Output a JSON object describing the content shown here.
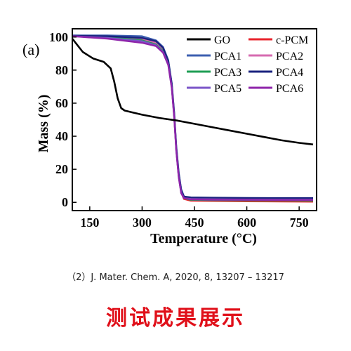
{
  "chart_data": {
    "type": "line",
    "panel_label": "(a)",
    "xlabel": "Temperature (°C)",
    "ylabel": "Mass (%)",
    "xlim": [
      100,
      800
    ],
    "ylim": [
      -5,
      105
    ],
    "xticks": [
      150,
      300,
      450,
      600,
      750
    ],
    "yticks": [
      0,
      20,
      40,
      60,
      80,
      100
    ],
    "grid": false,
    "legend_position": "top-right",
    "series": [
      {
        "name": "GO",
        "color": "#000000",
        "x": [
          100,
          130,
          160,
          190,
          210,
          220,
          230,
          240,
          250,
          270,
          300,
          350,
          400,
          450,
          500,
          550,
          600,
          650,
          700,
          750,
          790
        ],
        "y": [
          99,
          91,
          87,
          85,
          81,
          73,
          63,
          57,
          55.5,
          54.5,
          53,
          51,
          49.5,
          47.5,
          45.5,
          43.5,
          41.5,
          39.5,
          37.5,
          36,
          35
        ]
      },
      {
        "name": "c-PCM",
        "color": "#e8232b",
        "x": [
          100,
          200,
          300,
          340,
          360,
          375,
          385,
          392,
          398,
          405,
          412,
          420,
          440,
          500,
          600,
          700,
          790
        ],
        "y": [
          100.5,
          100,
          98.5,
          96,
          92,
          84,
          70,
          52,
          32,
          16,
          6,
          2,
          1,
          0.8,
          0.6,
          0.5,
          0.4
        ]
      },
      {
        "name": "PCA1",
        "color": "#3d5fb0",
        "x": [
          100,
          200,
          300,
          340,
          360,
          375,
          385,
          392,
          398,
          405,
          412,
          420,
          440,
          500,
          600,
          700,
          790
        ],
        "y": [
          101,
          101,
          100.5,
          98,
          94,
          86,
          72,
          54,
          34,
          18,
          8,
          3.5,
          2.5,
          2.5,
          2.3,
          2.2,
          2.2
        ]
      },
      {
        "name": "PCA2",
        "color": "#d66bb0",
        "x": [
          100,
          200,
          300,
          340,
          360,
          375,
          385,
          392,
          398,
          405,
          412,
          420,
          440,
          500,
          600,
          700,
          790
        ],
        "y": [
          100.5,
          100,
          99,
          96.5,
          92.5,
          85,
          71,
          53,
          33,
          17,
          7,
          3,
          2,
          1.8,
          1.6,
          1.5,
          1.5
        ]
      },
      {
        "name": "PCA3",
        "color": "#1f9e55",
        "x": [
          100,
          200,
          300,
          340,
          360,
          375,
          385,
          392,
          398,
          405,
          412,
          420,
          440,
          500,
          600,
          700,
          790
        ],
        "y": [
          100.5,
          100,
          98,
          95.5,
          91.5,
          84,
          70,
          52,
          32,
          16,
          6,
          2.5,
          1.5,
          1.3,
          1.2,
          1.1,
          1
        ]
      },
      {
        "name": "PCA4",
        "color": "#1a237e",
        "x": [
          100,
          200,
          300,
          340,
          360,
          375,
          385,
          392,
          398,
          405,
          412,
          420,
          440,
          500,
          600,
          700,
          790
        ],
        "y": [
          100.8,
          100.5,
          99.5,
          97.5,
          93.5,
          85.5,
          71.5,
          53.5,
          33.5,
          17.5,
          7.5,
          3.5,
          3,
          2.8,
          2.7,
          2.6,
          2.6
        ]
      },
      {
        "name": "PCA5",
        "color": "#7b55c8",
        "x": [
          100,
          200,
          300,
          340,
          360,
          375,
          385,
          392,
          398,
          405,
          412,
          420,
          440,
          500,
          600,
          700,
          790
        ],
        "y": [
          100.5,
          99.5,
          97.5,
          95,
          91,
          83.5,
          69.5,
          51.5,
          31.5,
          15.5,
          6,
          2.5,
          2,
          1.8,
          1.7,
          1.6,
          1.6
        ]
      },
      {
        "name": "PCA6",
        "color": "#8e24aa",
        "x": [
          100,
          200,
          300,
          340,
          360,
          375,
          385,
          392,
          398,
          405,
          412,
          420,
          440,
          500,
          600,
          700,
          790
        ],
        "y": [
          100.5,
          99,
          96.5,
          94.5,
          90.5,
          83,
          69,
          51,
          31,
          15,
          5.5,
          2.5,
          1.8,
          1.6,
          1.5,
          1.4,
          1.4
        ]
      }
    ]
  },
  "caption": "（2）J. Mater. Chem. A, 2020, 8, 13207 – 13217",
  "banner": "测试成果展示",
  "colors": {
    "banner": "#e0101a",
    "axes": "#000000"
  }
}
